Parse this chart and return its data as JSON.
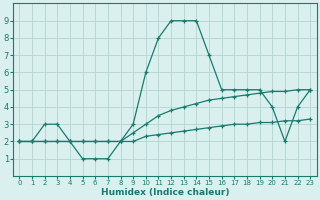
{
  "xlabel": "Humidex (Indice chaleur)",
  "x": [
    0,
    1,
    2,
    3,
    4,
    5,
    6,
    7,
    8,
    9,
    10,
    11,
    12,
    13,
    14,
    15,
    16,
    17,
    18,
    19,
    20,
    21,
    22,
    23
  ],
  "line_jagged": [
    2,
    2,
    3,
    3,
    2,
    1,
    1,
    1,
    2,
    3,
    6,
    8,
    9,
    9,
    9,
    7,
    5,
    5,
    5,
    5,
    4,
    2,
    4,
    5
  ],
  "line_low": [
    2,
    2,
    2,
    2,
    2,
    2,
    2,
    2,
    2,
    2,
    2.3,
    2.4,
    2.5,
    2.6,
    2.7,
    2.8,
    2.9,
    3.0,
    3.0,
    3.1,
    3.1,
    3.2,
    3.2,
    3.3
  ],
  "line_high": [
    2,
    2,
    2,
    2,
    2,
    2,
    2,
    2,
    2,
    2.5,
    3.0,
    3.5,
    3.8,
    4.0,
    4.2,
    4.4,
    4.5,
    4.6,
    4.7,
    4.8,
    4.9,
    4.9,
    5.0,
    5.0
  ],
  "line_color": "#1a7a6e",
  "bg_color": "#d9f0ef",
  "grid_color": "#b8d8d5",
  "ylim": [
    0,
    10
  ],
  "xlim": [
    -0.5,
    23.5
  ],
  "yticks": [
    1,
    2,
    3,
    4,
    5,
    6,
    7,
    8,
    9
  ],
  "xticks": [
    0,
    1,
    2,
    3,
    4,
    5,
    6,
    7,
    8,
    9,
    10,
    11,
    12,
    13,
    14,
    15,
    16,
    17,
    18,
    19,
    20,
    21,
    22,
    23
  ]
}
